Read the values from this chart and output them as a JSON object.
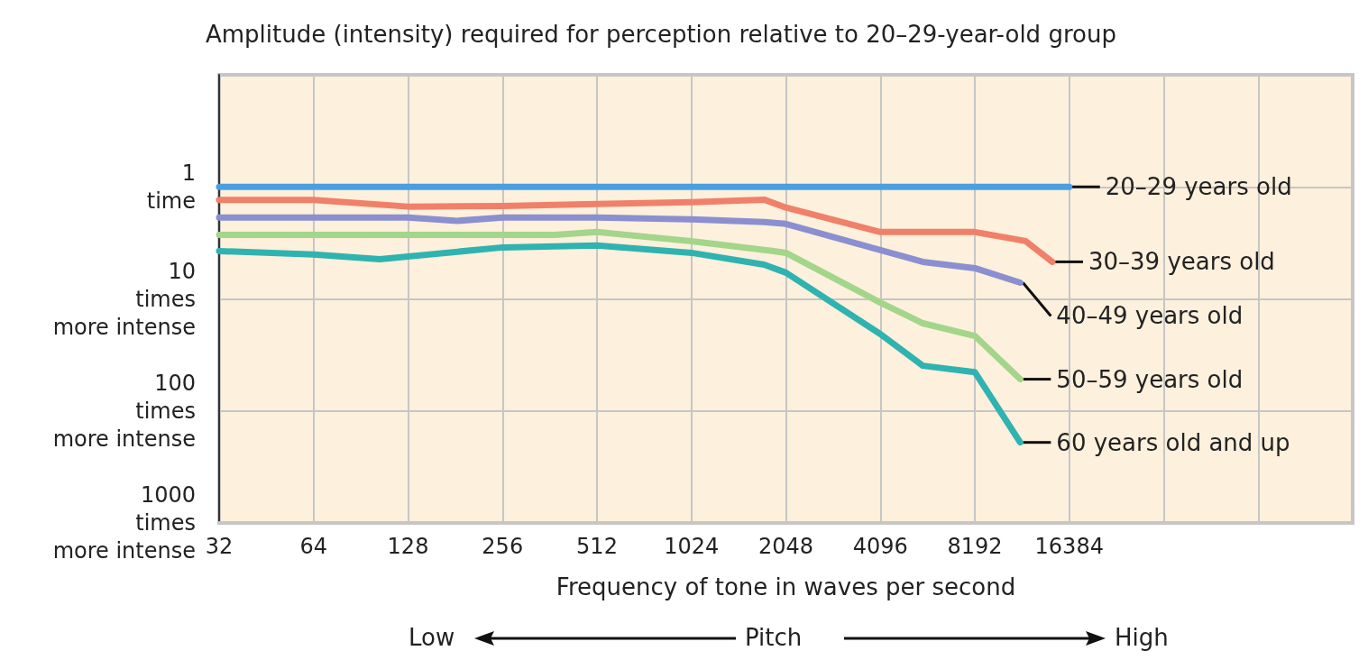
{
  "chart_data": {
    "type": "line",
    "title": "Amplitude (intensity) required for perception relative to 20–29-year-old group",
    "xlabel": "Frequency of tone in waves per second",
    "log": "xy",
    "grid": true,
    "legend": false,
    "marker": "none",
    "line_style": "solid",
    "xlim": [
      32,
      131072
    ],
    "xticks": [
      32,
      64,
      128,
      256,
      512,
      1024,
      2048,
      4096,
      8192,
      16384,
      {
        "value": 32768,
        "label": null
      },
      {
        "value": 65536,
        "label": null
      },
      {
        "value": 131072,
        "label": null
      }
    ],
    "ylim": [
      1000,
      0.1
    ],
    "yticks": [
      {
        "value": 1,
        "label": "1\ntime"
      },
      {
        "value": 10,
        "label": "10\ntimes\nmore intense"
      },
      {
        "value": 100,
        "label": "100\ntimes\nmore intense"
      },
      {
        "value": 1000,
        "label": "1000\ntimes\nmore intense"
      }
    ],
    "annotations": [
      "Low",
      "Pitch",
      "High"
    ],
    "series": [
      {
        "name": "20–29 years old",
        "color": "#4a9fe0",
        "x": [
          32,
          16384
        ],
        "values": [
          1,
          1
        ]
      },
      {
        "name": "30–39 years old",
        "color": "#f0806a",
        "x": [
          32,
          64,
          128,
          256,
          512,
          1024,
          1745,
          2048,
          4096,
          8192,
          11900,
          14470
        ],
        "values": [
          1.31,
          1.31,
          1.5,
          1.48,
          1.42,
          1.37,
          1.3,
          1.53,
          2.53,
          2.53,
          3.05,
          4.67
        ]
      },
      {
        "name": "40–49 years old",
        "color": "#8b8fd0",
        "x": [
          32,
          64,
          128,
          184,
          256,
          512,
          1024,
          1745,
          2048,
          4096,
          5590,
          8192,
          11430
        ],
        "values": [
          1.88,
          1.88,
          1.88,
          2.01,
          1.88,
          1.88,
          1.95,
          2.06,
          2.14,
          3.67,
          4.67,
          5.32,
          7.16
        ]
      },
      {
        "name": "50–59 years old",
        "color": "#a3d58a",
        "x": [
          32,
          64,
          128,
          256,
          375,
          512,
          1024,
          1850,
          2048,
          4096,
          5590,
          8192,
          11430
        ],
        "values": [
          2.68,
          2.68,
          2.68,
          2.68,
          2.68,
          2.53,
          3.05,
          3.73,
          3.88,
          10.8,
          16.5,
          21.4,
          52.1
        ]
      },
      {
        "name": "60 years old and up",
        "color": "#2fb3b0",
        "x": [
          32,
          64,
          104,
          256,
          512,
          1024,
          1745,
          2048,
          4096,
          5590,
          8192,
          11430
        ],
        "values": [
          3.74,
          4.02,
          4.42,
          3.47,
          3.34,
          3.88,
          4.94,
          5.83,
          20.6,
          39.5,
          45,
          191
        ]
      }
    ]
  }
}
